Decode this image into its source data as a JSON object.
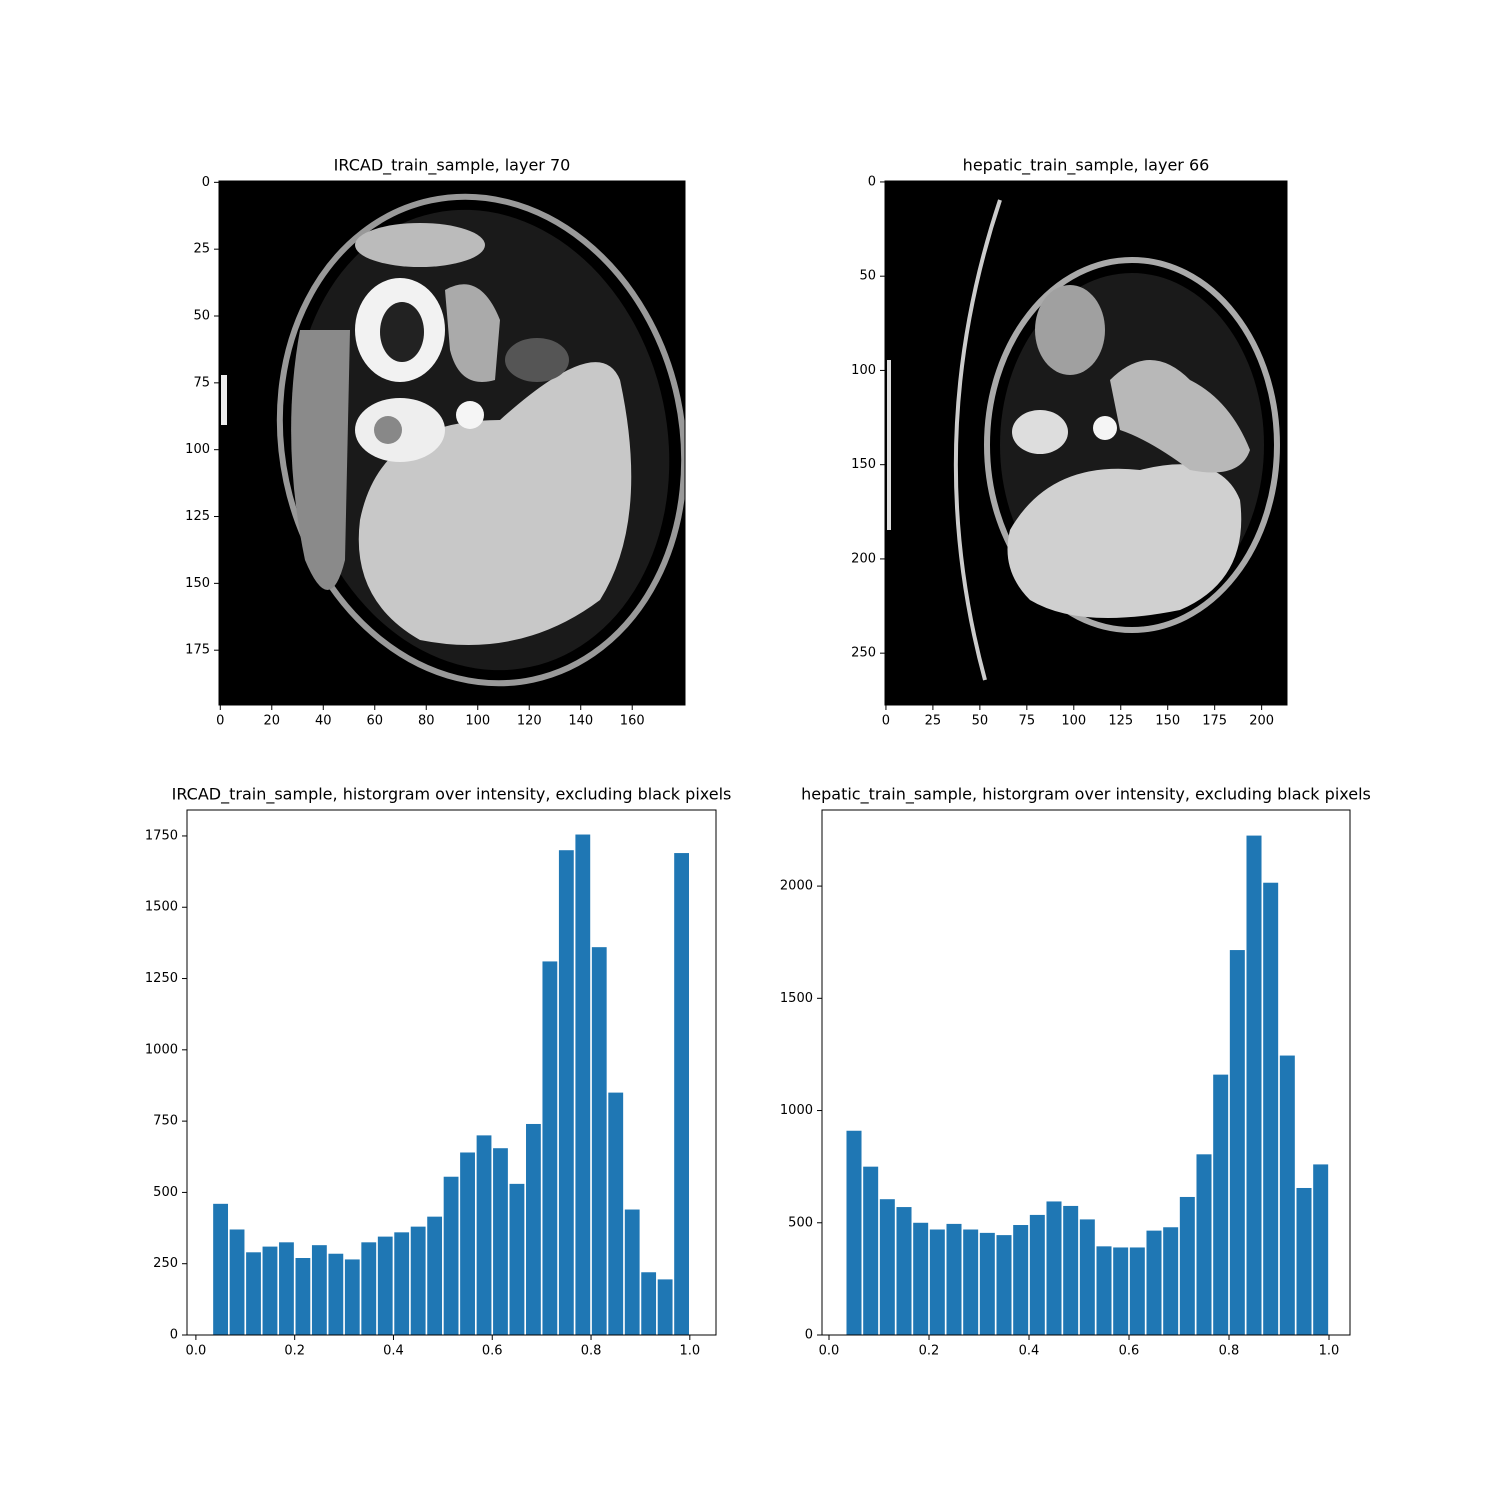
{
  "chart_data": [
    {
      "type": "image",
      "title": "IRCAD_train_sample, layer 70",
      "xlim": [
        -0.5,
        180.5
      ],
      "ylim": [
        195.5,
        -0.5
      ],
      "xticks": [
        0,
        20,
        40,
        60,
        80,
        100,
        120,
        140,
        160
      ],
      "yticks": [
        0,
        25,
        50,
        75,
        100,
        125,
        150,
        175
      ]
    },
    {
      "type": "image",
      "title": "hepatic_train_sample, layer 66",
      "xlim": [
        -0.5,
        213.5
      ],
      "ylim": [
        277.5,
        -0.5
      ],
      "xticks": [
        0,
        25,
        50,
        75,
        100,
        125,
        150,
        175,
        200
      ],
      "yticks": [
        0,
        50,
        100,
        150,
        200,
        250
      ]
    },
    {
      "type": "histogram",
      "title": "IRCAD_train_sample, historgram over intensity, excluding black pixels",
      "color": "#1f77b4",
      "bins": [
        0.0333,
        0.0667,
        0.1,
        0.1333,
        0.1667,
        0.2,
        0.2333,
        0.2667,
        0.3,
        0.3333,
        0.3667,
        0.4,
        0.4333,
        0.4667,
        0.5,
        0.5333,
        0.5667,
        0.6,
        0.6333,
        0.6667,
        0.7,
        0.7333,
        0.7667,
        0.8,
        0.8333,
        0.8667,
        0.9,
        0.9333,
        0.9667,
        1.0
      ],
      "values": [
        460,
        370,
        290,
        310,
        325,
        270,
        315,
        285,
        265,
        325,
        345,
        360,
        380,
        415,
        555,
        640,
        700,
        655,
        530,
        740,
        1310,
        1700,
        1755,
        1360,
        850,
        440,
        220,
        195,
        1690
      ],
      "xlim": [
        -0.018,
        1.053
      ],
      "ylim": [
        0,
        1841
      ],
      "xticks": [
        {
          "value": 0,
          "label": "0.0"
        },
        0.2,
        0.4,
        0.6,
        0.8,
        {
          "value": 1,
          "label": "1.0"
        }
      ],
      "yticks": [
        0,
        250,
        500,
        750,
        1000,
        1250,
        1500,
        1750
      ]
    },
    {
      "type": "histogram",
      "title": "hepatic_train_sample, historgram over intensity, excluding black pixels",
      "color": "#1f77b4",
      "bins": [
        0.0333,
        0.0667,
        0.1,
        0.1333,
        0.1667,
        0.2,
        0.2333,
        0.2667,
        0.3,
        0.3333,
        0.3667,
        0.4,
        0.4333,
        0.4667,
        0.5,
        0.5333,
        0.5667,
        0.6,
        0.6333,
        0.6667,
        0.7,
        0.7333,
        0.7667,
        0.8,
        0.8333,
        0.8667,
        0.9,
        0.9333,
        0.9667,
        1.0
      ],
      "values": [
        910,
        750,
        605,
        570,
        500,
        470,
        495,
        470,
        455,
        445,
        490,
        535,
        595,
        575,
        515,
        395,
        390,
        390,
        465,
        480,
        615,
        805,
        1160,
        1715,
        2225,
        2015,
        1245,
        655,
        760
      ],
      "xlim": [
        -0.014,
        1.042
      ],
      "ylim": [
        0,
        2339
      ],
      "xticks": [
        {
          "value": 0,
          "label": "0.0"
        },
        0.2,
        0.4,
        0.6,
        0.8,
        {
          "value": 1,
          "label": "1.0"
        }
      ],
      "yticks": [
        0,
        500,
        1000,
        1500,
        2000
      ]
    }
  ]
}
